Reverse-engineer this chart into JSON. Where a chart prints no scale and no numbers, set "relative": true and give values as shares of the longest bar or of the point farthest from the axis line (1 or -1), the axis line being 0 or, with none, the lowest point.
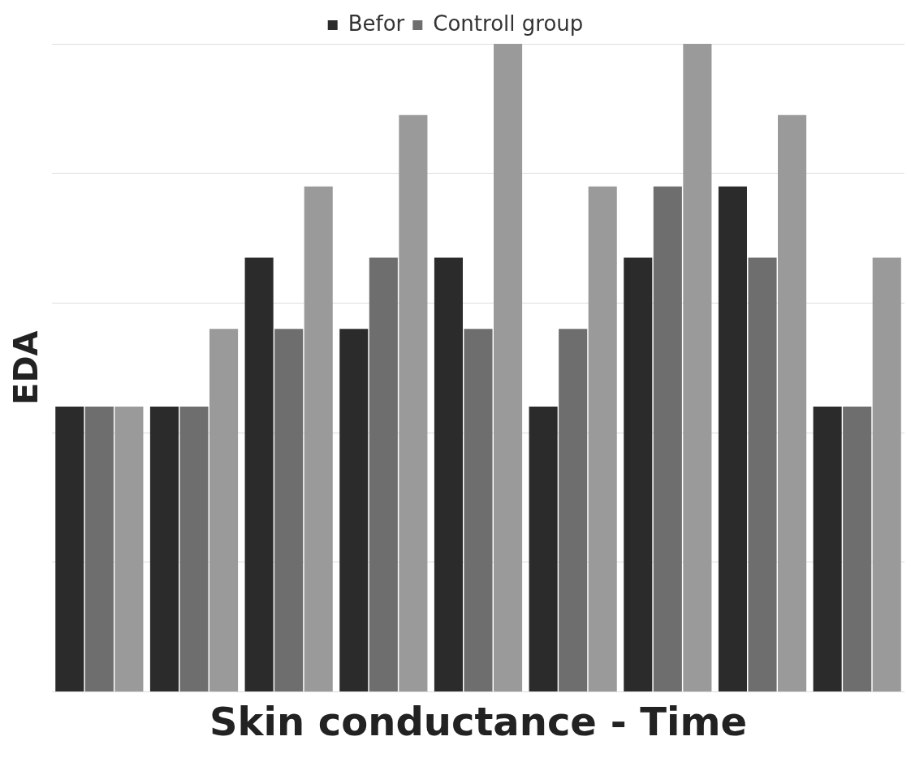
{
  "chart_data": {
    "type": "bar",
    "relative": true,
    "xlabel": "Skin conductance - Time",
    "ylabel": "EDA",
    "categories": [
      null,
      null,
      null,
      null,
      null,
      null,
      null,
      null,
      null
    ],
    "series": [
      {
        "name": "Befor",
        "color": "#2b2b2b",
        "values": [
          0.44,
          0.44,
          0.67,
          0.56,
          0.67,
          0.44,
          0.67,
          0.78,
          0.44
        ]
      },
      {
        "name": "Controll group",
        "color": "#6e6e6e",
        "values": [
          0.44,
          0.44,
          0.56,
          0.67,
          0.56,
          0.56,
          0.78,
          0.67,
          0.44
        ]
      },
      {
        "color": "#9a9a9a",
        "values": [
          0.44,
          0.56,
          0.78,
          0.89,
          1,
          0.78,
          1,
          0.89,
          0.67
        ]
      }
    ],
    "grid": "y",
    "legend": "top"
  }
}
